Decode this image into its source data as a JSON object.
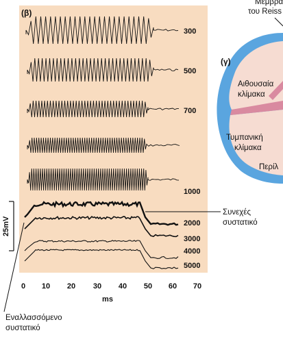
{
  "panel_b_label": "(β)",
  "panel_c_label": "(γ)",
  "traces": [
    {
      "frequency_label": "300"
    },
    {
      "frequency_label": "500"
    },
    {
      "frequency_label": "700"
    },
    {
      "frequency_label": ""
    },
    {
      "frequency_label": "1000"
    },
    {
      "frequency_label": "2000"
    },
    {
      "frequency_label": "3000"
    },
    {
      "frequency_label": "4000"
    },
    {
      "frequency_label": "5000"
    }
  ],
  "x_axis": {
    "ticks": [
      "0",
      "10",
      "20",
      "30",
      "40",
      "50",
      "60",
      "70"
    ],
    "label": "ms"
  },
  "scale_bar_label": "25mV",
  "annotations": {
    "continuous_line1": "Συνεχές",
    "continuous_line2": "συστατικό",
    "alternating_line1": "Εναλλασσόμενο",
    "alternating_line2": "συστατικό"
  },
  "cochlea": {
    "membrane_line1": "Μεμβρά",
    "membrane_line2": "του Reiss",
    "scala_vestibuli_line1": "Αιθουσαία",
    "scala_vestibuli_line2": "κλίμακα",
    "scala_tympani_line1": "Τυμπανική",
    "scala_tympani_line2": "κλίμακα",
    "perilymph": "Περίλ"
  },
  "colors": {
    "panel_bg": "#f8dcc0",
    "cochlea_fill": "#f6dcd2",
    "cochlea_border": "#5aa5df",
    "membrane": "#d98aa0"
  }
}
